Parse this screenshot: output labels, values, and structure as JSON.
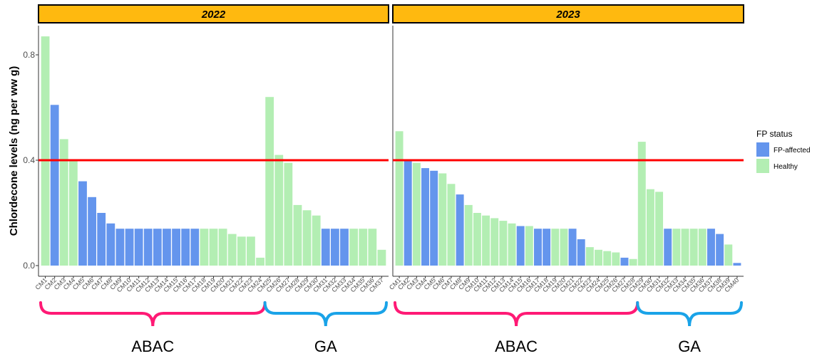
{
  "chart_data": {
    "type": "bar",
    "ylabel": "Chlordecone levels (ng per ww g)",
    "ylim": [
      0,
      0.9
    ],
    "yticks": [
      "0.0",
      "0.4",
      "0.8"
    ],
    "threshold": 0.4,
    "threshold_color": "#ff0000",
    "strip_color": "#ffb90f",
    "legend": {
      "title": "FP status",
      "position": "right",
      "entries": [
        {
          "name": "FP-affected",
          "color": "#6495ed"
        },
        {
          "name": "Healthy",
          "color": "#b3eeb3"
        }
      ]
    },
    "panels": [
      {
        "title": "2022",
        "categories": [
          "CM1",
          "CM2",
          "CM3",
          "CM4",
          "CM5",
          "CM6",
          "CM7",
          "CM8",
          "CM9",
          "CM10",
          "CM11",
          "CM12",
          "CM13",
          "CM14",
          "CM15",
          "CM16",
          "CM17",
          "CM18",
          "CM19",
          "CM20",
          "CM21",
          "CM22",
          "CM23",
          "CM24",
          "CM25",
          "CM26",
          "CM27",
          "CM28",
          "CM29",
          "CM30",
          "CM31",
          "CM32",
          "CM33",
          "CM34",
          "CM35",
          "CM36",
          "CM37"
        ],
        "values": [
          0.87,
          0.61,
          0.48,
          0.4,
          0.32,
          0.26,
          0.2,
          0.16,
          0.14,
          0.14,
          0.14,
          0.14,
          0.14,
          0.14,
          0.14,
          0.14,
          0.14,
          0.14,
          0.14,
          0.14,
          0.12,
          0.11,
          0.11,
          0.03,
          0.64,
          0.42,
          0.39,
          0.23,
          0.21,
          0.19,
          0.14,
          0.14,
          0.14,
          0.14,
          0.14,
          0.14,
          0.06
        ],
        "status": [
          "Healthy",
          "FP-affected",
          "Healthy",
          "Healthy",
          "FP-affected",
          "FP-affected",
          "FP-affected",
          "FP-affected",
          "FP-affected",
          "FP-affected",
          "FP-affected",
          "FP-affected",
          "FP-affected",
          "FP-affected",
          "FP-affected",
          "FP-affected",
          "FP-affected",
          "Healthy",
          "Healthy",
          "Healthy",
          "Healthy",
          "Healthy",
          "Healthy",
          "Healthy",
          "Healthy",
          "Healthy",
          "Healthy",
          "Healthy",
          "Healthy",
          "Healthy",
          "FP-affected",
          "FP-affected",
          "FP-affected",
          "Healthy",
          "Healthy",
          "Healthy",
          "Healthy"
        ],
        "groups": [
          {
            "label": "ABAC",
            "start": 0,
            "end": 23,
            "color": "#ff1a75"
          },
          {
            "label": "GA",
            "start": 24,
            "end": 36,
            "color": "#1aa3e8"
          }
        ]
      },
      {
        "title": "2023",
        "categories": [
          "CM1",
          "CM2",
          "CM3",
          "CM4",
          "CM5",
          "CM6",
          "CM7",
          "CM8",
          "CM9",
          "CM10",
          "CM11",
          "CM12",
          "CM13",
          "CM14",
          "CM15",
          "CM16",
          "CM17",
          "CM18",
          "CM19",
          "CM20",
          "CM21",
          "CM22",
          "CM23",
          "CM24",
          "CM25",
          "CM26",
          "CM27",
          "CM28",
          "CM29",
          "CM30",
          "CM31",
          "CM32",
          "CM33",
          "CM34",
          "CM35",
          "CM36",
          "CM37",
          "CM38",
          "CM39",
          "CM40"
        ],
        "values": [
          0.51,
          0.4,
          0.39,
          0.37,
          0.36,
          0.35,
          0.31,
          0.27,
          0.23,
          0.2,
          0.19,
          0.18,
          0.17,
          0.16,
          0.15,
          0.15,
          0.14,
          0.14,
          0.14,
          0.14,
          0.14,
          0.1,
          0.07,
          0.06,
          0.055,
          0.05,
          0.03,
          0.025,
          0.47,
          0.29,
          0.28,
          0.14,
          0.14,
          0.14,
          0.14,
          0.14,
          0.14,
          0.12,
          0.08,
          0.01
        ],
        "status": [
          "Healthy",
          "FP-affected",
          "Healthy",
          "FP-affected",
          "FP-affected",
          "Healthy",
          "Healthy",
          "FP-affected",
          "Healthy",
          "Healthy",
          "Healthy",
          "Healthy",
          "Healthy",
          "Healthy",
          "FP-affected",
          "Healthy",
          "FP-affected",
          "FP-affected",
          "Healthy",
          "Healthy",
          "FP-affected",
          "FP-affected",
          "Healthy",
          "Healthy",
          "Healthy",
          "Healthy",
          "FP-affected",
          "Healthy",
          "Healthy",
          "Healthy",
          "Healthy",
          "FP-affected",
          "Healthy",
          "Healthy",
          "Healthy",
          "Healthy",
          "FP-affected",
          "FP-affected",
          "Healthy",
          "FP-affected"
        ],
        "groups": [
          {
            "label": "ABAC",
            "start": 0,
            "end": 27,
            "color": "#ff1a75"
          },
          {
            "label": "GA",
            "start": 28,
            "end": 39,
            "color": "#1aa3e8"
          }
        ]
      }
    ]
  }
}
